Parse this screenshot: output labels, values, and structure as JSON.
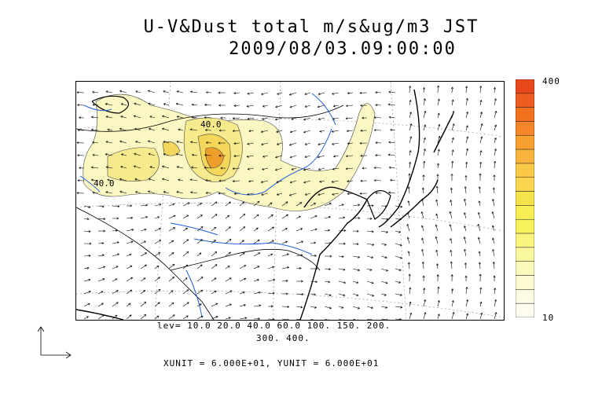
{
  "title_line1": "U-V&Dust total m/s&ug/m3 JST",
  "title_line2": "2009/08/03.09:00:00",
  "legend": {
    "max_label": "400",
    "min_label": "10",
    "colors": [
      "#e8481a",
      "#ef5a1f",
      "#f3701f",
      "#f5862a",
      "#f7a02e",
      "#f8b43c",
      "#f9c847",
      "#f9d64e",
      "#f6e24a",
      "#f6ee52",
      "#f7f25e",
      "#f8f47e",
      "#f9f6a0",
      "#fbf8bb",
      "#fcfad0",
      "#fdfce2",
      "#fefdf0"
    ]
  },
  "contour_levels": "lev= 10.0 20.0 40.0 60.0 100. 150. 200.",
  "contour_levels_2": "300. 400.",
  "units_text": "XUNIT = 6.000E+01, YUNIT = 6.000E+01",
  "contour_labels": [
    "40.0",
    "40.0"
  ],
  "colors": {
    "coast": "#000000",
    "river": "#1f5fd6",
    "dust_light": "#fbf7c2",
    "dust_mid": "#f3e27a",
    "dust_core": "#ee9f2a"
  }
}
